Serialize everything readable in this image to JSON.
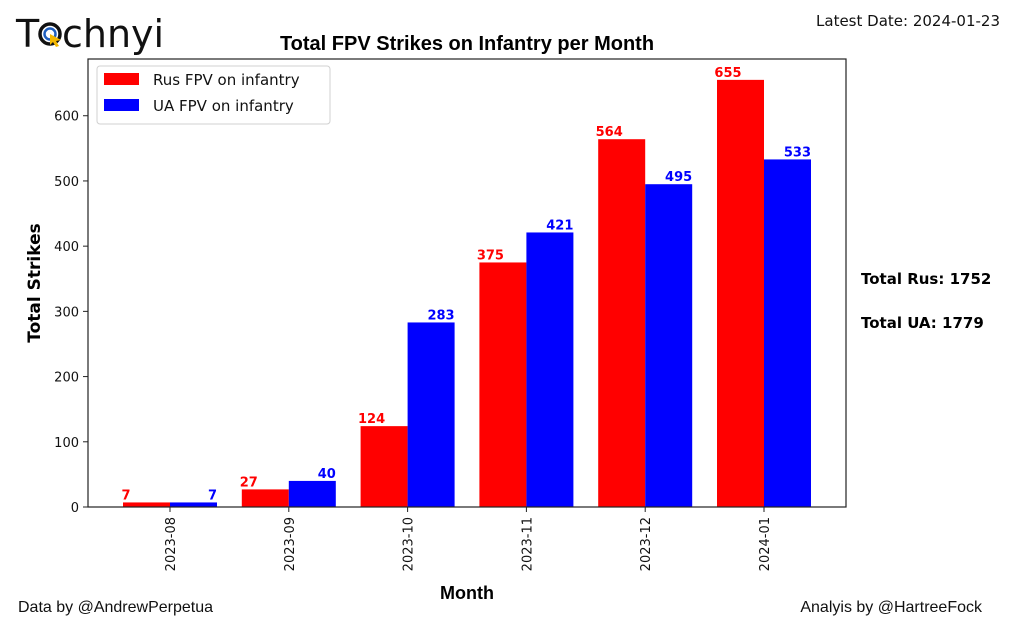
{
  "logo": {
    "text_pre": "T",
    "text_post": "chnyi",
    "full_text": "Technyi"
  },
  "latest_date": "Latest Date: 2024-01-23",
  "totals": {
    "rus": "Total Rus: 1752",
    "ua": "Total UA: 1779"
  },
  "credits": {
    "data": "Data by @AndrewPerpetua",
    "analysis": "Analyis by @HartreeFock"
  },
  "chart_data": {
    "type": "bar",
    "title": "Total FPV Strikes on Infantry per Month",
    "xlabel": "Month",
    "ylabel": "Total Strikes",
    "categories": [
      "2023-08",
      "2023-09",
      "2023-10",
      "2023-11",
      "2023-12",
      "2024-01"
    ],
    "series": [
      {
        "name": "Rus FPV on infantry",
        "color": "#ff0000",
        "values": [
          7,
          27,
          124,
          375,
          564,
          655
        ]
      },
      {
        "name": "UA FPV on infantry",
        "color": "#0000ff",
        "values": [
          7,
          40,
          283,
          421,
          495,
          533
        ]
      }
    ],
    "ylim": [
      0,
      687
    ],
    "yticks": [
      0,
      100,
      200,
      300,
      400,
      500,
      600
    ],
    "grid": false,
    "legend": "top-left"
  }
}
